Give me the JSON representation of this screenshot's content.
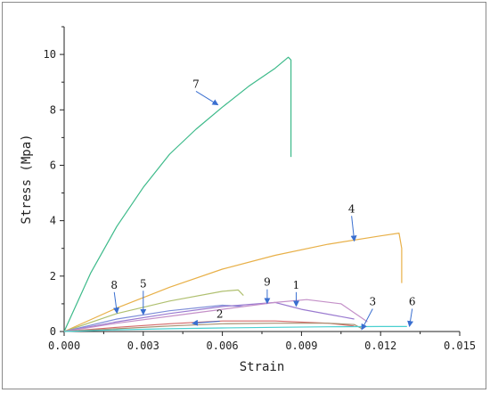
{
  "chart_data": {
    "type": "line",
    "title": "",
    "xlabel": "Strain",
    "ylabel": "Stress (Mpa)",
    "xlim": [
      0,
      0.015
    ],
    "ylim": [
      0,
      11
    ],
    "xticks": [
      0,
      0.003,
      0.006,
      0.009,
      0.012,
      0.015
    ],
    "xtick_labels": [
      "0.000",
      "0.003",
      "0.006",
      "0.009",
      "0.012",
      "0.015"
    ],
    "yticks": [
      0,
      2,
      4,
      6,
      8,
      10
    ],
    "ytick_labels": [
      "0",
      "2",
      "4",
      "6",
      "8",
      "10"
    ],
    "grid": false,
    "legend": "none",
    "series": [
      {
        "name": "7",
        "color": "#3dba8a",
        "x": [
          0,
          0.001,
          0.002,
          0.003,
          0.004,
          0.005,
          0.006,
          0.007,
          0.008,
          0.0085,
          0.0086,
          0.0086
        ],
        "y": [
          0,
          2.1,
          3.8,
          5.2,
          6.4,
          7.3,
          8.1,
          8.85,
          9.5,
          9.9,
          9.8,
          6.3
        ]
      },
      {
        "name": "4",
        "color": "#e8b048",
        "x": [
          0,
          0.002,
          0.004,
          0.006,
          0.008,
          0.01,
          0.012,
          0.0127,
          0.0128,
          0.0128
        ],
        "y": [
          0,
          0.85,
          1.6,
          2.25,
          2.75,
          3.15,
          3.45,
          3.55,
          3.0,
          1.75
        ]
      },
      {
        "name": "5",
        "color": "#b0c070",
        "x": [
          0,
          0.002,
          0.004,
          0.006,
          0.0066,
          0.0068
        ],
        "y": [
          0,
          0.65,
          1.1,
          1.45,
          1.5,
          1.3
        ]
      },
      {
        "name": "8",
        "color": "#7e8ed8",
        "x": [
          0,
          0.002,
          0.004,
          0.006,
          0.0068
        ],
        "y": [
          0,
          0.45,
          0.75,
          0.95,
          0.9
        ]
      },
      {
        "name": "9",
        "color": "#9a7ad0",
        "x": [
          0,
          0.002,
          0.004,
          0.006,
          0.008,
          0.0086,
          0.009,
          0.011
        ],
        "y": [
          0,
          0.35,
          0.65,
          0.9,
          1.05,
          0.9,
          0.8,
          0.45
        ]
      },
      {
        "name": "1",
        "color": "#c490c8",
        "x": [
          0,
          0.002,
          0.004,
          0.006,
          0.008,
          0.0092,
          0.0105,
          0.0115
        ],
        "y": [
          0,
          0.3,
          0.55,
          0.8,
          1.05,
          1.15,
          1.0,
          0.35
        ]
      },
      {
        "name": "2",
        "color": "#d46a6a",
        "x": [
          0,
          0.002,
          0.004,
          0.006,
          0.008,
          0.01,
          0.011
        ],
        "y": [
          0,
          0.15,
          0.28,
          0.38,
          0.38,
          0.3,
          0.2
        ]
      },
      {
        "name": "3",
        "color": "#a89070",
        "x": [
          0,
          0.002,
          0.004,
          0.006,
          0.008,
          0.01,
          0.011,
          0.0113
        ],
        "y": [
          0,
          0.1,
          0.2,
          0.28,
          0.3,
          0.3,
          0.25,
          0.1
        ]
      },
      {
        "name": "6",
        "color": "#4ad0d0",
        "x": [
          0,
          0.002,
          0.004,
          0.006,
          0.008,
          0.01,
          0.012,
          0.013
        ],
        "y": [
          0,
          0.06,
          0.1,
          0.13,
          0.15,
          0.17,
          0.18,
          0.18
        ]
      }
    ],
    "annotations": [
      {
        "text": "7",
        "label_at": [
          0.005,
          8.8
        ],
        "arrow_to": [
          0.0058,
          8.2
        ]
      },
      {
        "text": "4",
        "label_at": [
          0.0109,
          4.3
        ],
        "arrow_to": [
          0.011,
          3.3
        ]
      },
      {
        "text": "8",
        "label_at": [
          0.0019,
          1.55
        ],
        "arrow_to": [
          0.002,
          0.7
        ]
      },
      {
        "text": "5",
        "label_at": [
          0.003,
          1.6
        ],
        "arrow_to": [
          0.003,
          0.65
        ]
      },
      {
        "text": "9",
        "label_at": [
          0.0077,
          1.65
        ],
        "arrow_to": [
          0.0077,
          1.05
        ]
      },
      {
        "text": "1",
        "label_at": [
          0.0088,
          1.55
        ],
        "arrow_to": [
          0.0088,
          0.95
        ]
      },
      {
        "text": "2",
        "label_at": [
          0.0059,
          0.5
        ],
        "arrow_to": [
          0.0049,
          0.3
        ]
      },
      {
        "text": "3",
        "label_at": [
          0.0117,
          0.95
        ],
        "arrow_to": [
          0.0113,
          0.1
        ]
      },
      {
        "text": "6",
        "label_at": [
          0.0132,
          0.95
        ],
        "arrow_to": [
          0.0131,
          0.22
        ]
      }
    ]
  }
}
